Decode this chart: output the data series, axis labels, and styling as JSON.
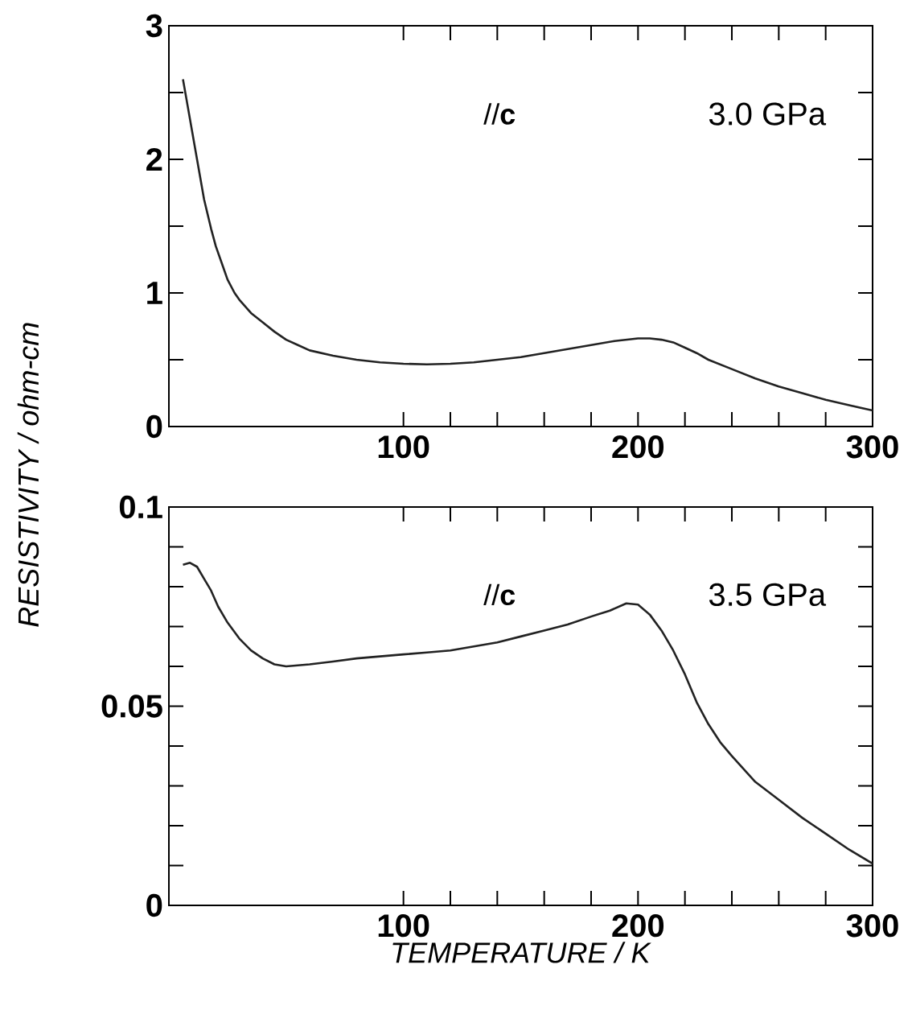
{
  "chart_data": [
    {
      "type": "line",
      "ylabel": "*RESISTIVITY / ohm-cm*",
      "annotations": [
        "//**c**",
        "3.0 GPa"
      ],
      "x": [
        6,
        8,
        10,
        12,
        15,
        18,
        20,
        23,
        25,
        28,
        30,
        35,
        40,
        45,
        50,
        55,
        60,
        70,
        80,
        90,
        100,
        110,
        120,
        130,
        140,
        150,
        160,
        170,
        180,
        190,
        200,
        205,
        210,
        215,
        220,
        225,
        230,
        240,
        250,
        260,
        270,
        280,
        290,
        300
      ],
      "series": [
        {
          "color": "#222222",
          "values": [
            2.6,
            2.4,
            2.2,
            2.0,
            1.7,
            1.48,
            1.35,
            1.2,
            1.1,
            1.0,
            0.95,
            0.85,
            0.78,
            0.71,
            0.65,
            0.61,
            0.57,
            0.53,
            0.5,
            0.48,
            0.47,
            0.465,
            0.47,
            0.48,
            0.5,
            0.52,
            0.55,
            0.58,
            0.61,
            0.64,
            0.66,
            0.66,
            0.65,
            0.63,
            0.59,
            0.55,
            0.5,
            0.43,
            0.36,
            0.3,
            0.25,
            0.2,
            0.16,
            0.12
          ]
        }
      ],
      "xlim": [
        0,
        300
      ],
      "ylim": [
        0,
        3
      ],
      "xticks": [
        {
          "value": 0,
          "label": null
        },
        100,
        200,
        300
      ],
      "yticks": [
        0,
        1,
        2,
        3
      ]
    },
    {
      "type": "line",
      "xlabel": "*TEMPERATURE / K*",
      "annotations": [
        "//**c**",
        "3.5 GPa"
      ],
      "x": [
        6,
        9,
        12,
        15,
        18,
        21,
        25,
        30,
        35,
        40,
        45,
        50,
        60,
        70,
        80,
        90,
        100,
        110,
        120,
        130,
        140,
        150,
        160,
        170,
        180,
        188,
        195,
        200,
        205,
        210,
        215,
        220,
        225,
        230,
        235,
        240,
        250,
        260,
        270,
        280,
        290,
        300
      ],
      "series": [
        {
          "color": "#222222",
          "values": [
            0.0855,
            0.086,
            0.085,
            0.082,
            0.079,
            0.075,
            0.071,
            0.067,
            0.064,
            0.062,
            0.0605,
            0.06,
            0.0605,
            0.0612,
            0.062,
            0.0625,
            0.063,
            0.0635,
            0.064,
            0.065,
            0.066,
            0.0675,
            0.069,
            0.0705,
            0.0725,
            0.074,
            0.0758,
            0.0755,
            0.073,
            0.069,
            0.064,
            0.058,
            0.051,
            0.0455,
            0.041,
            0.0375,
            0.031,
            0.0265,
            0.022,
            0.018,
            0.014,
            0.0105
          ]
        }
      ],
      "xlim": [
        0,
        300
      ],
      "ylim": [
        0,
        0.1
      ],
      "xticks": [
        {
          "value": 0,
          "label": null
        },
        100,
        200,
        300
      ],
      "yticks": [
        0,
        0.05,
        0.1
      ]
    }
  ]
}
